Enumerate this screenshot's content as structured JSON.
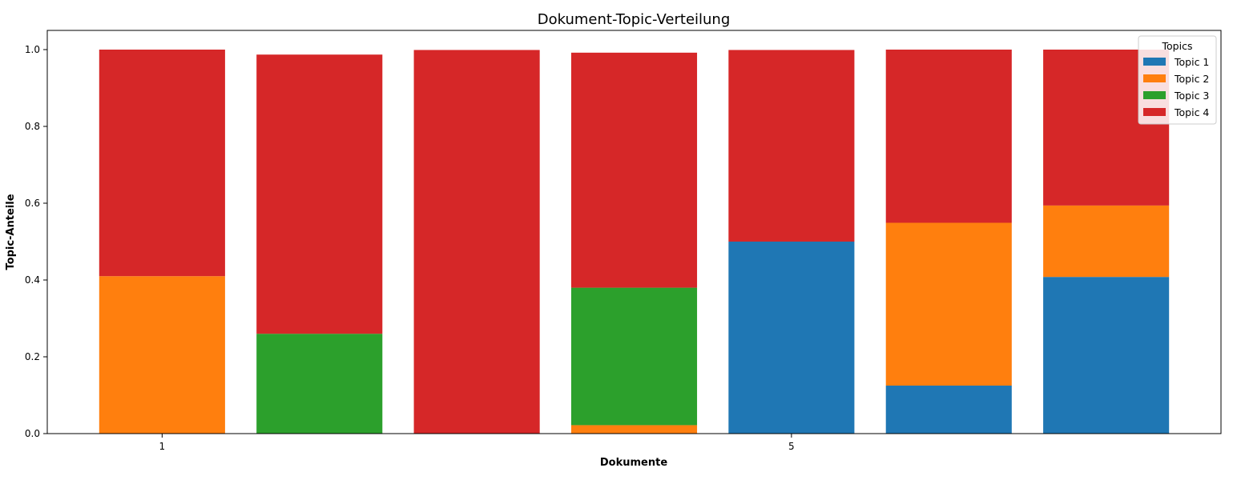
{
  "chart_data": {
    "type": "bar",
    "stacked": true,
    "title": "Dokument-Topic-Verteilung",
    "xlabel": "Dokumente",
    "ylabel": "Topic-Anteile",
    "x": [
      1,
      2,
      3,
      4,
      5,
      6,
      7
    ],
    "x_tick_labels": [
      "1",
      "5"
    ],
    "x_tick_values": [
      1,
      5
    ],
    "ylim": [
      0,
      1.05
    ],
    "y_ticks": [
      0.0,
      0.2,
      0.4,
      0.6,
      0.8,
      1.0
    ],
    "y_tick_labels": [
      "0.0",
      "0.2",
      "0.4",
      "0.6",
      "0.8",
      "1.0"
    ],
    "grid": false,
    "legend": {
      "title": "Topics",
      "placement": "top-right"
    },
    "series": [
      {
        "name": "Topic 1",
        "color": "#1f77b4",
        "values": [
          0.0,
          0.0,
          0.0,
          0.0,
          0.5,
          0.125,
          0.408
        ]
      },
      {
        "name": "Topic 2",
        "color": "#ff7f0e",
        "values": [
          0.41,
          0.0,
          0.0,
          0.022,
          0.0,
          0.424,
          0.186
        ]
      },
      {
        "name": "Topic 3",
        "color": "#2ca02c",
        "values": [
          0.0,
          0.26,
          0.0,
          0.358,
          0.0,
          0.0,
          0.0
        ]
      },
      {
        "name": "Topic 4",
        "color": "#d62728",
        "values": [
          0.59,
          0.727,
          0.999,
          0.612,
          0.499,
          0.451,
          0.406
        ]
      }
    ]
  }
}
